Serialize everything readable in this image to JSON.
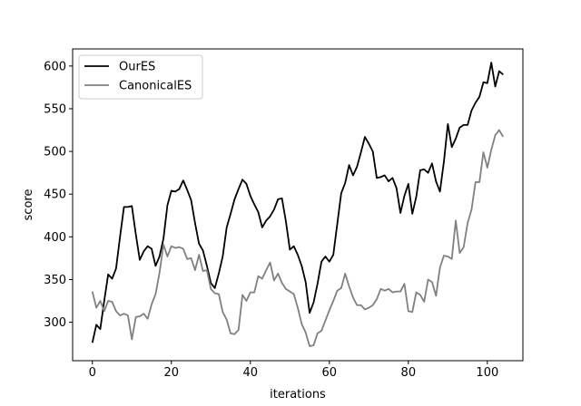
{
  "chart_data": {
    "type": "line",
    "xlabel": "iterations",
    "ylabel": "score",
    "xlim": [
      -5,
      109
    ],
    "ylim": [
      255,
      620
    ],
    "xticks": [
      0,
      20,
      40,
      60,
      80,
      100
    ],
    "yticks": [
      300,
      350,
      400,
      450,
      500,
      550,
      600
    ],
    "grid": false,
    "legend_position": "top-left",
    "x": [
      0,
      1,
      2,
      3,
      4,
      5,
      6,
      7,
      8,
      9,
      10,
      11,
      12,
      13,
      14,
      15,
      16,
      17,
      18,
      19,
      20,
      21,
      22,
      23,
      24,
      25,
      26,
      27,
      28,
      29,
      30,
      31,
      32,
      33,
      34,
      35,
      36,
      37,
      38,
      39,
      40,
      41,
      42,
      43,
      44,
      45,
      46,
      47,
      48,
      49,
      50,
      51,
      52,
      53,
      54,
      55,
      56,
      57,
      58,
      59,
      60,
      61,
      62,
      63,
      64,
      65,
      66,
      67,
      68,
      69,
      70,
      71,
      72,
      73,
      74,
      75,
      76,
      77,
      78,
      79,
      80,
      81,
      82,
      83,
      84,
      85,
      86,
      87,
      88,
      89,
      90,
      91,
      92,
      93,
      94,
      95,
      96,
      97,
      98,
      99,
      100,
      101,
      102,
      103,
      104
    ],
    "series": [
      {
        "name": "OurES",
        "color": "#000000",
        "values": [
          276,
          297,
          292,
          325,
          356,
          351,
          363,
          400,
          435,
          435,
          436,
          403,
          373,
          383,
          389,
          386,
          366,
          377,
          398,
          437,
          454,
          453,
          456,
          466,
          455,
          443,
          416,
          392,
          384,
          366,
          346,
          340,
          357,
          377,
          411,
          427,
          444,
          456,
          467,
          462,
          448,
          438,
          429,
          411,
          419,
          424,
          432,
          444,
          445,
          418,
          385,
          389,
          379,
          366,
          347,
          311,
          323,
          345,
          371,
          377,
          371,
          379,
          415,
          451,
          463,
          484,
          472,
          482,
          499,
          517,
          509,
          500,
          469,
          470,
          472,
          465,
          469,
          457,
          428,
          448,
          462,
          427,
          447,
          478,
          479,
          475,
          486,
          465,
          453,
          488,
          532,
          505,
          515,
          528,
          531,
          531,
          548,
          557,
          564,
          581,
          580,
          604,
          576,
          594,
          590
        ]
      },
      {
        "name": "CanonicalES",
        "color": "#808080",
        "values": [
          336,
          317,
          325,
          313,
          325,
          324,
          313,
          308,
          310,
          308,
          280,
          306,
          307,
          310,
          304,
          321,
          333,
          358,
          391,
          377,
          389,
          387,
          388,
          386,
          374,
          375,
          361,
          379,
          360,
          361,
          339,
          334,
          333,
          312,
          303,
          287,
          286,
          291,
          332,
          325,
          335,
          335,
          354,
          351,
          361,
          370,
          349,
          357,
          346,
          339,
          336,
          333,
          317,
          298,
          288,
          272,
          273,
          287,
          290,
          302,
          314,
          325,
          337,
          340,
          357,
          342,
          329,
          320,
          320,
          315,
          317,
          320,
          327,
          339,
          337,
          339,
          335,
          336,
          336,
          345,
          313,
          312,
          335,
          332,
          324,
          350,
          347,
          331,
          364,
          378,
          377,
          374,
          419,
          381,
          388,
          416,
          432,
          464,
          464,
          499,
          481,
          502,
          519,
          525,
          517
        ]
      }
    ]
  }
}
